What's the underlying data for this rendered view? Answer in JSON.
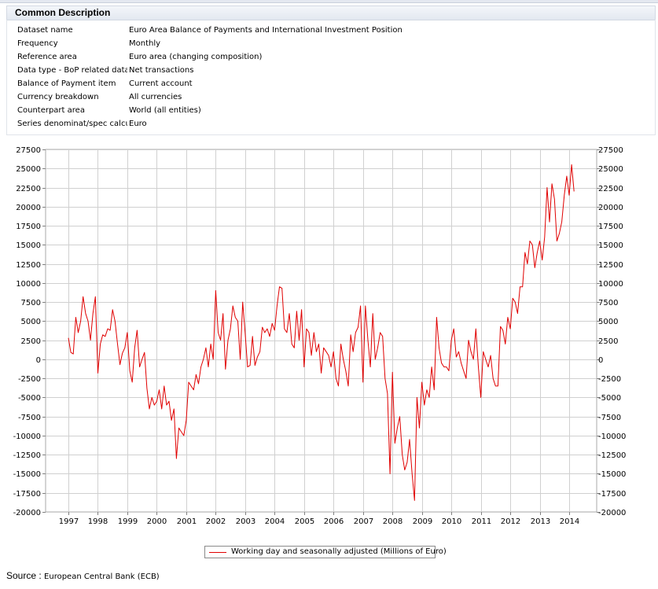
{
  "panel": {
    "title": "Common Description",
    "rows": [
      {
        "label": "Dataset name",
        "value": "Euro Area Balance of Payments and International Investment Position"
      },
      {
        "label": "Frequency",
        "value": "Monthly"
      },
      {
        "label": "Reference area",
        "value": "Euro area (changing composition)"
      },
      {
        "label": "Data type - BoP related data",
        "value": "Net transactions"
      },
      {
        "label": "Balance of Payment item",
        "value": "Current account"
      },
      {
        "label": "Currency breakdown",
        "value": "All currencies"
      },
      {
        "label": "Counterpart area",
        "value": "World (all entities)"
      },
      {
        "label": "Series denominat/spec calcul",
        "value": "Euro"
      }
    ]
  },
  "source": {
    "label": "Source :",
    "value": "European Central Bank (ECB)"
  },
  "chart_data": {
    "type": "line",
    "title": "",
    "xlabel": "",
    "ylabel": "",
    "x_start": "1997-01",
    "x_end": "2014-02",
    "ylim": [
      -20000,
      27500
    ],
    "y_ticks": [
      27500,
      25000,
      22500,
      20000,
      17500,
      15000,
      12500,
      10000,
      7500,
      5000,
      2500,
      0,
      -2500,
      -5000,
      -7500,
      -10000,
      -12500,
      -15000,
      -17500,
      -20000
    ],
    "y_tick_labels": [
      "27500",
      "25000",
      "22500",
      "20000",
      "17500",
      "15000",
      "12500",
      "10000",
      "7500",
      "5000",
      "2500",
      "0",
      "-2500",
      "-5000",
      "-7500",
      "-10000",
      "-12500",
      "-15000",
      "-17500",
      "-20000"
    ],
    "x_tick_labels": [
      "1997",
      "1998",
      "1999",
      "2000",
      "2001",
      "2002",
      "2003",
      "2004",
      "2005",
      "2006",
      "2007",
      "2008",
      "2009",
      "2010",
      "2011",
      "2012",
      "2013",
      "2014"
    ],
    "grid": true,
    "legend_position": "bottom",
    "series": [
      {
        "name": "Working day and seasonally adjusted (Millions of Euro)",
        "color": "#e00000",
        "values": [
          2800,
          900,
          700,
          5500,
          3500,
          5000,
          8200,
          6000,
          5000,
          2500,
          6000,
          8200,
          -1800,
          2000,
          3200,
          3000,
          4000,
          3800,
          6500,
          5000,
          2000,
          -700,
          800,
          1500,
          3500,
          -1500,
          -3000,
          1500,
          3800,
          -1000,
          0,
          900,
          -3800,
          -6500,
          -5000,
          -6000,
          -5500,
          -4000,
          -6500,
          -3500,
          -6000,
          -5500,
          -8000,
          -6500,
          -13000,
          -9000,
          -9500,
          -10000,
          -8000,
          -3000,
          -3500,
          -4000,
          -2000,
          -3200,
          -1000,
          0,
          1500,
          -1000,
          2000,
          0,
          9000,
          3500,
          2500,
          6000,
          -1300,
          2500,
          4000,
          7000,
          5500,
          5000,
          0,
          7500,
          3500,
          -1000,
          -800,
          3000,
          -800,
          300,
          1000,
          4200,
          3500,
          4000,
          3000,
          4700,
          3800,
          7000,
          9500,
          9300,
          4000,
          3500,
          6000,
          2000,
          1500,
          6300,
          2500,
          6500,
          -1000,
          4000,
          3500,
          500,
          3500,
          1000,
          2000,
          -1800,
          1500,
          1000,
          500,
          -1000,
          1000,
          -2500,
          -3500,
          2000,
          0,
          -1500,
          -3500,
          3200,
          1000,
          3500,
          4200,
          7000,
          -3000,
          7000,
          2500,
          -1000,
          6000,
          0,
          1500,
          3500,
          3000,
          -2500,
          -4500,
          -15000,
          -1700,
          -11000,
          -9000,
          -7500,
          -12500,
          -14500,
          -13500,
          -10500,
          -15000,
          -18500,
          -5000,
          -9000,
          -3000,
          -6000,
          -4000,
          -5000,
          -1000,
          -4000,
          5500,
          1500,
          -500,
          -1000,
          -1000,
          -1500,
          2500,
          4000,
          300,
          1000,
          -500,
          -1500,
          -2500,
          2500,
          1000,
          0,
          4000,
          -1000,
          -5000,
          1000,
          0,
          -1000,
          500,
          -2500,
          -3500,
          -3500,
          4300,
          3800,
          2000,
          5500,
          4000,
          8000,
          7500,
          6000,
          9500,
          9500,
          14000,
          12500,
          15500,
          15000,
          12000,
          14000,
          15500,
          13000,
          16000,
          22500,
          18000,
          23000,
          21000,
          15500,
          16500,
          18000,
          21500,
          24000,
          21500,
          25500,
          22000
        ]
      }
    ]
  }
}
